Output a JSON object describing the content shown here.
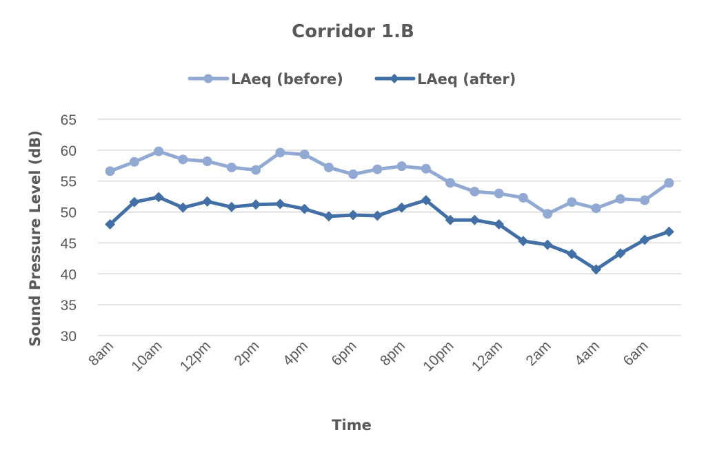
{
  "chart_data": {
    "type": "line",
    "title": "Corridor 1.B",
    "xlabel": "Time",
    "ylabel": "Sound Pressure Level (dB)",
    "ylim": [
      30,
      65
    ],
    "yticks": [
      30,
      35,
      40,
      45,
      50,
      55,
      60,
      65
    ],
    "grid": true,
    "legend_position": "top",
    "x_label_interval": 2,
    "categories": [
      "8am",
      "9am",
      "10am",
      "11am",
      "12pm",
      "1pm",
      "2pm",
      "3pm",
      "4pm",
      "5pm",
      "6pm",
      "7pm",
      "8pm",
      "9pm",
      "10pm",
      "11pm",
      "12am",
      "1am",
      "2am",
      "3am",
      "4am",
      "5am",
      "6am",
      "7am"
    ],
    "series": [
      {
        "name": "LAeq (before)",
        "color": "#91A9D3",
        "marker": "circle",
        "values": [
          56.6,
          58.1,
          59.8,
          58.5,
          58.2,
          57.2,
          56.8,
          59.6,
          59.3,
          57.2,
          56.1,
          56.9,
          57.4,
          57.0,
          54.7,
          53.3,
          53.0,
          52.3,
          49.7,
          51.6,
          50.6,
          52.1,
          51.9,
          54.7
        ]
      },
      {
        "name": "LAeq (after)",
        "color": "#416FA6",
        "marker": "diamond",
        "values": [
          48.0,
          51.6,
          52.4,
          50.7,
          51.7,
          50.8,
          51.2,
          51.3,
          50.5,
          49.3,
          49.5,
          49.4,
          50.7,
          51.9,
          48.7,
          48.7,
          48.0,
          45.3,
          44.7,
          43.2,
          40.7,
          43.3,
          45.5,
          46.8
        ]
      }
    ]
  }
}
